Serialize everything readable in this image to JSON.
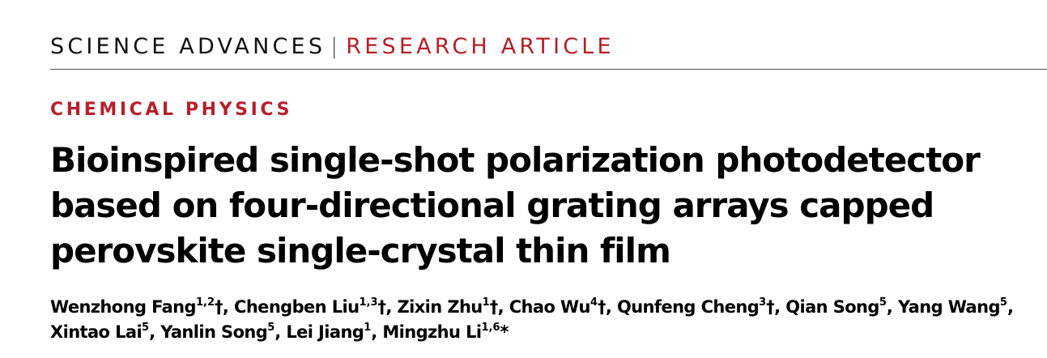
{
  "header": {
    "journal": "SCIENCE ADVANCES",
    "separator": "|",
    "article_type": "RESEARCH ARTICLE"
  },
  "category": "CHEMICAL PHYSICS",
  "title_lines": [
    "Bioinspired single-shot polarization photodetector",
    "based on four-directional grating arrays capped",
    "perovskite single-crystal thin film"
  ],
  "authors": [
    {
      "name": "Wenzhong Fang",
      "aff": "1,2",
      "mark": "†",
      "sep": ", "
    },
    {
      "name": "Chengben Liu",
      "aff": "1,3",
      "mark": "†",
      "sep": ", "
    },
    {
      "name": "Zixin Zhu",
      "aff": "1",
      "mark": "†",
      "sep": ", "
    },
    {
      "name": "Chao Wu",
      "aff": "4",
      "mark": "†",
      "sep": ", "
    },
    {
      "name": "Qunfeng Cheng",
      "aff": "3",
      "mark": "†",
      "sep": ", "
    },
    {
      "name": "Qian Song",
      "aff": "5",
      "mark": "",
      "sep": ", "
    },
    {
      "name": "Yang Wang",
      "aff": "5",
      "mark": "",
      "sep": ", "
    },
    {
      "name": "Xintao Lai",
      "aff": "5",
      "mark": "",
      "sep": ", "
    },
    {
      "name": "Yanlin Song",
      "aff": "5",
      "mark": "",
      "sep": ", "
    },
    {
      "name": "Lei Jiang",
      "aff": "1",
      "mark": "",
      "sep": ", "
    },
    {
      "name": "Mingzhu Li",
      "aff": "1,6",
      "mark": "*",
      "sep": ""
    }
  ],
  "colors": {
    "accent": "#b5202a",
    "text": "#000000"
  }
}
